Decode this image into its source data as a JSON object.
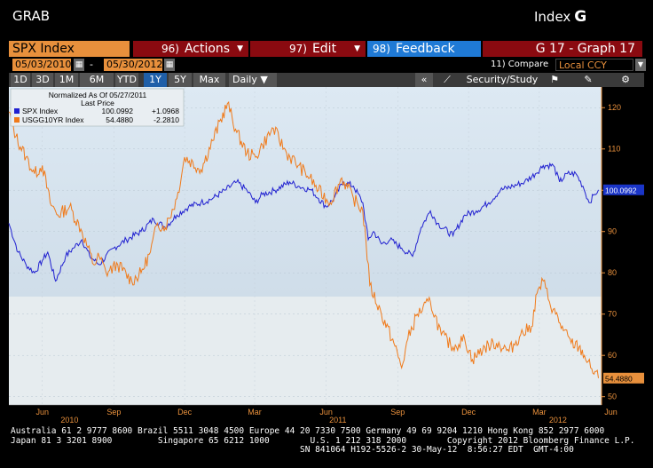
{
  "header": {
    "left_title": "GRAB",
    "right_title": "Index",
    "right_letter": "G"
  },
  "toolbar": {
    "ticker": "SPX Index",
    "actions_num": "96)",
    "actions_label": "Actions",
    "edit_num": "97)",
    "edit_label": "Edit",
    "feedback_num": "98)",
    "feedback_label": "Feedback",
    "graph_name": "G 17 - Graph 17"
  },
  "dates": {
    "start": "05/03/2010",
    "separator": "-",
    "end": "05/30/2012"
  },
  "compare": {
    "label": "11) Compare",
    "currency": "Local CCY"
  },
  "periods": [
    "1D",
    "3D",
    "1M",
    "6M",
    "YTD",
    "1Y",
    "5Y",
    "Max"
  ],
  "active_period": "1Y",
  "frequency": "Daily",
  "security_study": "Security/Study",
  "legend": {
    "title": "Normalized As Of 05/27/2011",
    "subtitle": "Last Price",
    "rows": [
      {
        "name": "SPX Index",
        "value": "100.0992",
        "change": "+1.0968",
        "color": "#2020d0"
      },
      {
        "name": "USGG10YR Index",
        "value": "54.4880",
        "change": "-2.2810",
        "color": "#f07a1a"
      }
    ]
  },
  "colors": {
    "spx": "#2020d0",
    "us10y": "#f07a1a",
    "axis_text": "#e8903c",
    "plot_top": "#dde9f3",
    "plot_bottom": "#e7ecee"
  },
  "chart_data": {
    "type": "line",
    "title": "Normalized As Of 05/27/2011",
    "y_ticks": [
      50,
      60,
      70,
      80,
      90,
      100,
      110,
      120
    ],
    "ylim": [
      48,
      125
    ],
    "x_tick_labels": [
      "Jun",
      "Sep",
      "Dec",
      "Mar",
      "Jun",
      "Sep",
      "Dec",
      "Mar",
      "Jun"
    ],
    "x_year_labels": [
      "2010",
      "2011",
      "2012"
    ],
    "x_range": [
      "2010-05-03",
      "2012-05-30"
    ],
    "series": [
      {
        "name": "SPX Index",
        "last_value": "100.0992",
        "points": [
          [
            "2010-05-03",
            92
          ],
          [
            "2010-05-15",
            85
          ],
          [
            "2010-05-25",
            82
          ],
          [
            "2010-06-05",
            80
          ],
          [
            "2010-06-15",
            83
          ],
          [
            "2010-06-22",
            85
          ],
          [
            "2010-07-02",
            78
          ],
          [
            "2010-07-15",
            84
          ],
          [
            "2010-07-25",
            86
          ],
          [
            "2010-08-05",
            88
          ],
          [
            "2010-08-15",
            84
          ],
          [
            "2010-08-27",
            82
          ],
          [
            "2010-09-15",
            86
          ],
          [
            "2010-10-01",
            88
          ],
          [
            "2010-10-20",
            90
          ],
          [
            "2010-11-05",
            93
          ],
          [
            "2010-11-20",
            91
          ],
          [
            "2010-12-05",
            94
          ],
          [
            "2010-12-20",
            96
          ],
          [
            "2011-01-05",
            97
          ],
          [
            "2011-01-20",
            98
          ],
          [
            "2011-02-05",
            100
          ],
          [
            "2011-02-20",
            102
          ],
          [
            "2011-03-05",
            100
          ],
          [
            "2011-03-16",
            97
          ],
          [
            "2011-03-25",
            99
          ],
          [
            "2011-04-10",
            100
          ],
          [
            "2011-04-29",
            102
          ],
          [
            "2011-05-10",
            101
          ],
          [
            "2011-05-27",
            100
          ],
          [
            "2011-06-05",
            98
          ],
          [
            "2011-06-15",
            96
          ],
          [
            "2011-06-25",
            98
          ],
          [
            "2011-07-07",
            102
          ],
          [
            "2011-07-20",
            101
          ],
          [
            "2011-08-01",
            97
          ],
          [
            "2011-08-08",
            88
          ],
          [
            "2011-08-15",
            90
          ],
          [
            "2011-08-25",
            87
          ],
          [
            "2011-09-05",
            88
          ],
          [
            "2011-09-20",
            86
          ],
          [
            "2011-10-04",
            84
          ],
          [
            "2011-10-15",
            91
          ],
          [
            "2011-10-27",
            95
          ],
          [
            "2011-11-05",
            92
          ],
          [
            "2011-11-25",
            89
          ],
          [
            "2011-12-10",
            94
          ],
          [
            "2011-12-25",
            95
          ],
          [
            "2012-01-10",
            97
          ],
          [
            "2012-01-25",
            100
          ],
          [
            "2012-02-10",
            101
          ],
          [
            "2012-02-25",
            102
          ],
          [
            "2012-03-10",
            104
          ],
          [
            "2012-03-20",
            106
          ],
          [
            "2012-04-02",
            106
          ],
          [
            "2012-04-10",
            102
          ],
          [
            "2012-04-20",
            104
          ],
          [
            "2012-05-01",
            104
          ],
          [
            "2012-05-10",
            101
          ],
          [
            "2012-05-18",
            97
          ],
          [
            "2012-05-25",
            99
          ],
          [
            "2012-05-30",
            100.1
          ]
        ]
      },
      {
        "name": "USGG10YR Index",
        "last_value": "54.4880",
        "points": [
          [
            "2010-05-03",
            119
          ],
          [
            "2010-05-12",
            113
          ],
          [
            "2010-05-25",
            108
          ],
          [
            "2010-06-05",
            104
          ],
          [
            "2010-06-15",
            106
          ],
          [
            "2010-06-25",
            97
          ],
          [
            "2010-07-05",
            94
          ],
          [
            "2010-07-20",
            96
          ],
          [
            "2010-08-05",
            90
          ],
          [
            "2010-08-20",
            82
          ],
          [
            "2010-08-27",
            84
          ],
          [
            "2010-09-05",
            80
          ],
          [
            "2010-09-20",
            82
          ],
          [
            "2010-10-08",
            78
          ],
          [
            "2010-10-20",
            80
          ],
          [
            "2010-11-01",
            85
          ],
          [
            "2010-11-10",
            92
          ],
          [
            "2010-11-20",
            91
          ],
          [
            "2010-12-05",
            98
          ],
          [
            "2010-12-15",
            108
          ],
          [
            "2011-01-05",
            105
          ],
          [
            "2011-01-20",
            112
          ],
          [
            "2011-02-08",
            121
          ],
          [
            "2011-02-20",
            114
          ],
          [
            "2011-03-05",
            109
          ],
          [
            "2011-03-16",
            108
          ],
          [
            "2011-03-25",
            111
          ],
          [
            "2011-04-08",
            115
          ],
          [
            "2011-04-25",
            109
          ],
          [
            "2011-05-10",
            106
          ],
          [
            "2011-05-25",
            103
          ],
          [
            "2011-06-05",
            100
          ],
          [
            "2011-06-20",
            97
          ],
          [
            "2011-07-05",
            103
          ],
          [
            "2011-07-20",
            98
          ],
          [
            "2011-08-01",
            95
          ],
          [
            "2011-08-05",
            88
          ],
          [
            "2011-08-10",
            77
          ],
          [
            "2011-08-25",
            70
          ],
          [
            "2011-09-10",
            63
          ],
          [
            "2011-09-20",
            57
          ],
          [
            "2011-09-28",
            64
          ],
          [
            "2011-10-10",
            70
          ],
          [
            "2011-10-27",
            73
          ],
          [
            "2011-11-10",
            65
          ],
          [
            "2011-11-25",
            62
          ],
          [
            "2011-12-10",
            64
          ],
          [
            "2011-12-20",
            59
          ],
          [
            "2012-01-05",
            62
          ],
          [
            "2012-01-20",
            63
          ],
          [
            "2012-02-05",
            61
          ],
          [
            "2012-02-20",
            65
          ],
          [
            "2012-03-05",
            67
          ],
          [
            "2012-03-12",
            75
          ],
          [
            "2012-03-20",
            78
          ],
          [
            "2012-03-28",
            73
          ],
          [
            "2012-04-05",
            70
          ],
          [
            "2012-04-15",
            66
          ],
          [
            "2012-04-25",
            63
          ],
          [
            "2012-05-05",
            62
          ],
          [
            "2012-05-12",
            60
          ],
          [
            "2012-05-20",
            57
          ],
          [
            "2012-05-30",
            54.5
          ]
        ]
      }
    ]
  },
  "footer": {
    "line1": "Australia 61 2 9777 8600 Brazil 5511 3048 4500 Europe 44 20 7330 7500 Germany 49 69 9204 1210 Hong Kong 852 2977 6000",
    "line2": "Japan 81 3 3201 8900         Singapore 65 6212 1000        U.S. 1 212 318 2000        Copyright 2012 Bloomberg Finance L.P.",
    "line3": "                                                         SN 841064 H192-5526-2 30-May-12  8:56:27 EDT  GMT-4:00"
  }
}
